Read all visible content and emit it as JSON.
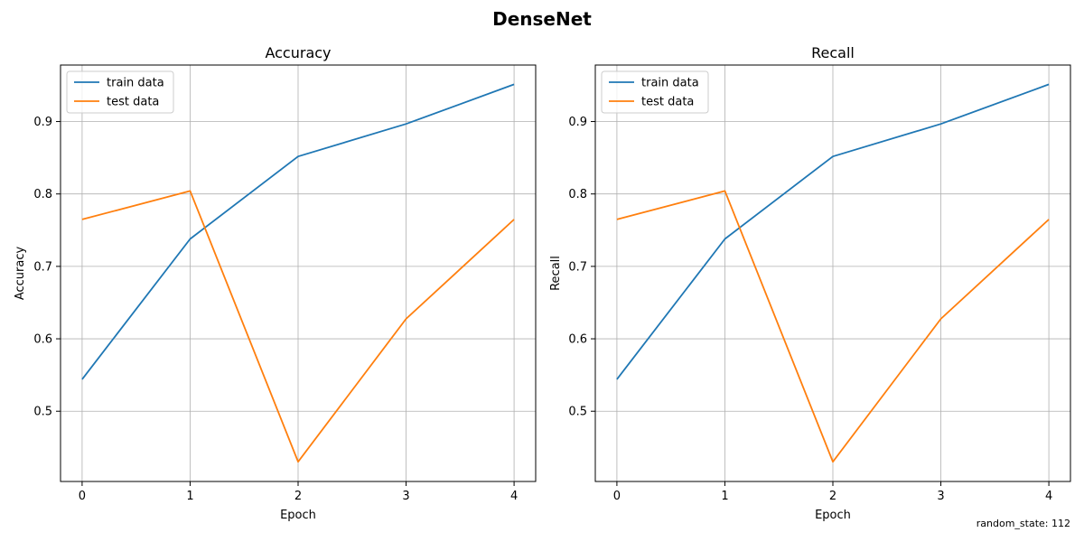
{
  "figure": {
    "suptitle": "DenseNet",
    "footnote": "random_state: 112"
  },
  "chart_data": [
    {
      "type": "line",
      "title": "Accuracy",
      "xlabel": "Epoch",
      "ylabel": "Accuracy",
      "x": [
        0,
        1,
        2,
        3,
        4
      ],
      "xticks": [
        "0",
        "1",
        "2",
        "3",
        "4"
      ],
      "yticks": [
        "0.5",
        "0.6",
        "0.7",
        "0.8",
        "0.9"
      ],
      "xlim": [
        -0.2,
        4.2
      ],
      "ylim": [
        0.403,
        0.978
      ],
      "grid": true,
      "legend": "upper-left",
      "series": [
        {
          "name": "train data",
          "color": "#1f77b4",
          "values": [
            0.5441,
            0.7379,
            0.8518,
            0.8967,
            0.9513
          ]
        },
        {
          "name": "test data",
          "color": "#ff7f0e",
          "values": [
            0.7649,
            0.8041,
            0.4302,
            0.6275,
            0.7649
          ]
        }
      ]
    },
    {
      "type": "line",
      "title": "Recall",
      "xlabel": "Epoch",
      "ylabel": "Recall",
      "x": [
        0,
        1,
        2,
        3,
        4
      ],
      "xticks": [
        "0",
        "1",
        "2",
        "3",
        "4"
      ],
      "yticks": [
        "0.5",
        "0.6",
        "0.7",
        "0.8",
        "0.9"
      ],
      "xlim": [
        -0.2,
        4.2
      ],
      "ylim": [
        0.403,
        0.978
      ],
      "grid": true,
      "legend": "upper-left",
      "series": [
        {
          "name": "train data",
          "color": "#1f77b4",
          "values": [
            0.5441,
            0.7379,
            0.8518,
            0.8967,
            0.9513
          ]
        },
        {
          "name": "test data",
          "color": "#ff7f0e",
          "values": [
            0.7649,
            0.8041,
            0.4302,
            0.6275,
            0.7649
          ]
        }
      ]
    }
  ]
}
